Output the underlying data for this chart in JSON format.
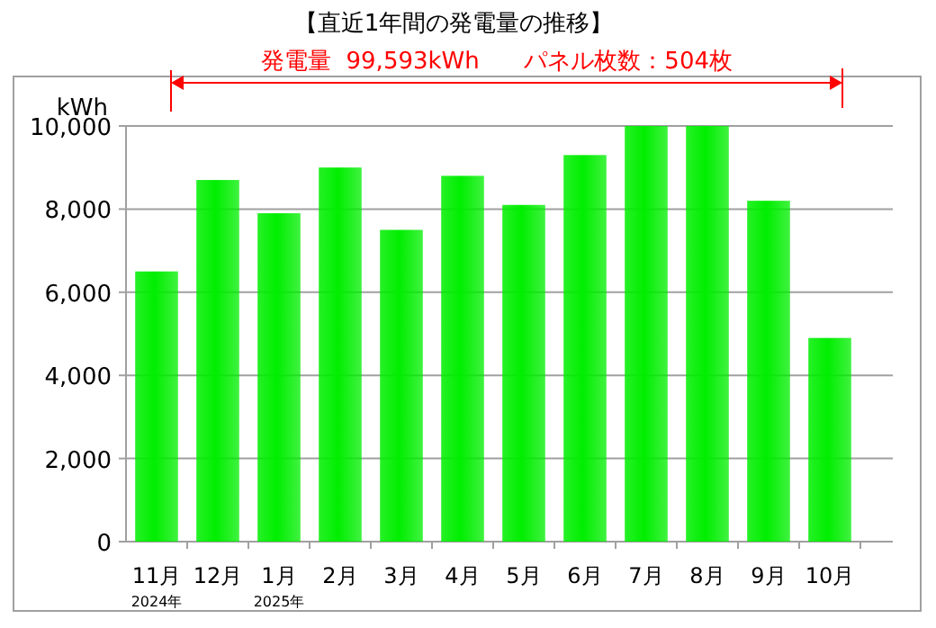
{
  "chart_data": {
    "type": "bar",
    "title": "【直近1年間の発電量の推移】",
    "ylabel": "kWh",
    "categories": [
      "11月",
      "12月",
      "1月",
      "2月",
      "3月",
      "4月",
      "5月",
      "6月",
      "7月",
      "8月",
      "9月",
      "10月"
    ],
    "values": [
      6500,
      8700,
      7900,
      9000,
      7500,
      8800,
      8100,
      9300,
      10000,
      10000,
      8200,
      4900
    ],
    "color": "#00ee00",
    "ylim": [
      0,
      10000
    ],
    "yticks": [
      {
        "value": 0,
        "label": "0"
      },
      {
        "value": 2000,
        "label": "2,000"
      },
      {
        "value": 4000,
        "label": "4,000"
      },
      {
        "value": 6000,
        "label": "6,000"
      },
      {
        "value": 8000,
        "label": "8,000"
      },
      {
        "value": 10000,
        "label": "10,000"
      }
    ],
    "grid": "y",
    "annotations": [
      "発電量  99,593kWh      パネル枚数：504枚",
      "2024年",
      "2025年"
    ]
  }
}
